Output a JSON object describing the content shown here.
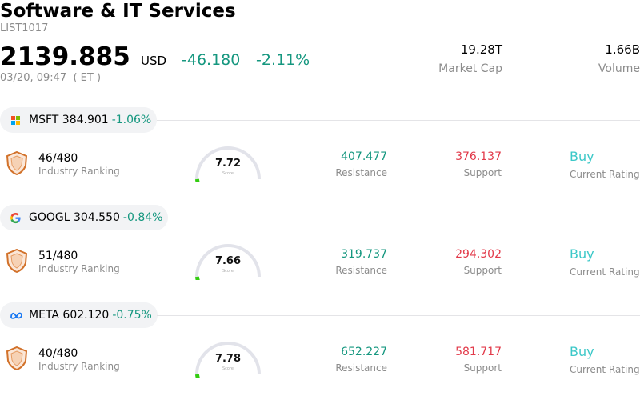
{
  "header": {
    "title": "Software & IT Services",
    "code": "LIST1017",
    "price": "2139.885",
    "currency": "USD",
    "change": "-46.180",
    "change_pct": "-2.11%",
    "time": "03/20, 09:47  ( ET )",
    "market_cap_value": "19.28T",
    "market_cap_label": "Market Cap",
    "volume_value": "1.66B",
    "volume_label": "Volume"
  },
  "colors": {
    "up_green": "#15977f",
    "support_red": "#e23a4a",
    "rating_teal": "#3cc8c8",
    "gauge_green": "#33cc11",
    "gauge_track": "#e2e3ea"
  },
  "stocks": [
    {
      "logo_icon": "microsoft-logo-icon",
      "symbol": "MSFT",
      "price": "384.901",
      "change_pct": "-1.06%",
      "rank": "46/480",
      "rank_label": "Industry Ranking",
      "score": "7.72",
      "score_fraction": 0.772,
      "score_label": "Score",
      "resistance": "407.477",
      "resistance_label": "Resistance",
      "support": "376.137",
      "support_label": "Support",
      "rating": "Buy",
      "rating_label": "Current Rating"
    },
    {
      "logo_icon": "google-logo-icon",
      "symbol": "GOOGL",
      "price": "304.550",
      "change_pct": "-0.84%",
      "rank": "51/480",
      "rank_label": "Industry Ranking",
      "score": "7.66",
      "score_fraction": 0.766,
      "score_label": "Score",
      "resistance": "319.737",
      "resistance_label": "Resistance",
      "support": "294.302",
      "support_label": "Support",
      "rating": "Buy",
      "rating_label": "Current Rating"
    },
    {
      "logo_icon": "meta-logo-icon",
      "symbol": "META",
      "price": "602.120",
      "change_pct": "-0.75%",
      "rank": "40/480",
      "rank_label": "Industry Ranking",
      "score": "7.78",
      "score_fraction": 0.778,
      "score_label": "Score",
      "resistance": "652.227",
      "resistance_label": "Resistance",
      "support": "581.717",
      "support_label": "Support",
      "rating": "Buy",
      "rating_label": "Current Rating"
    }
  ]
}
